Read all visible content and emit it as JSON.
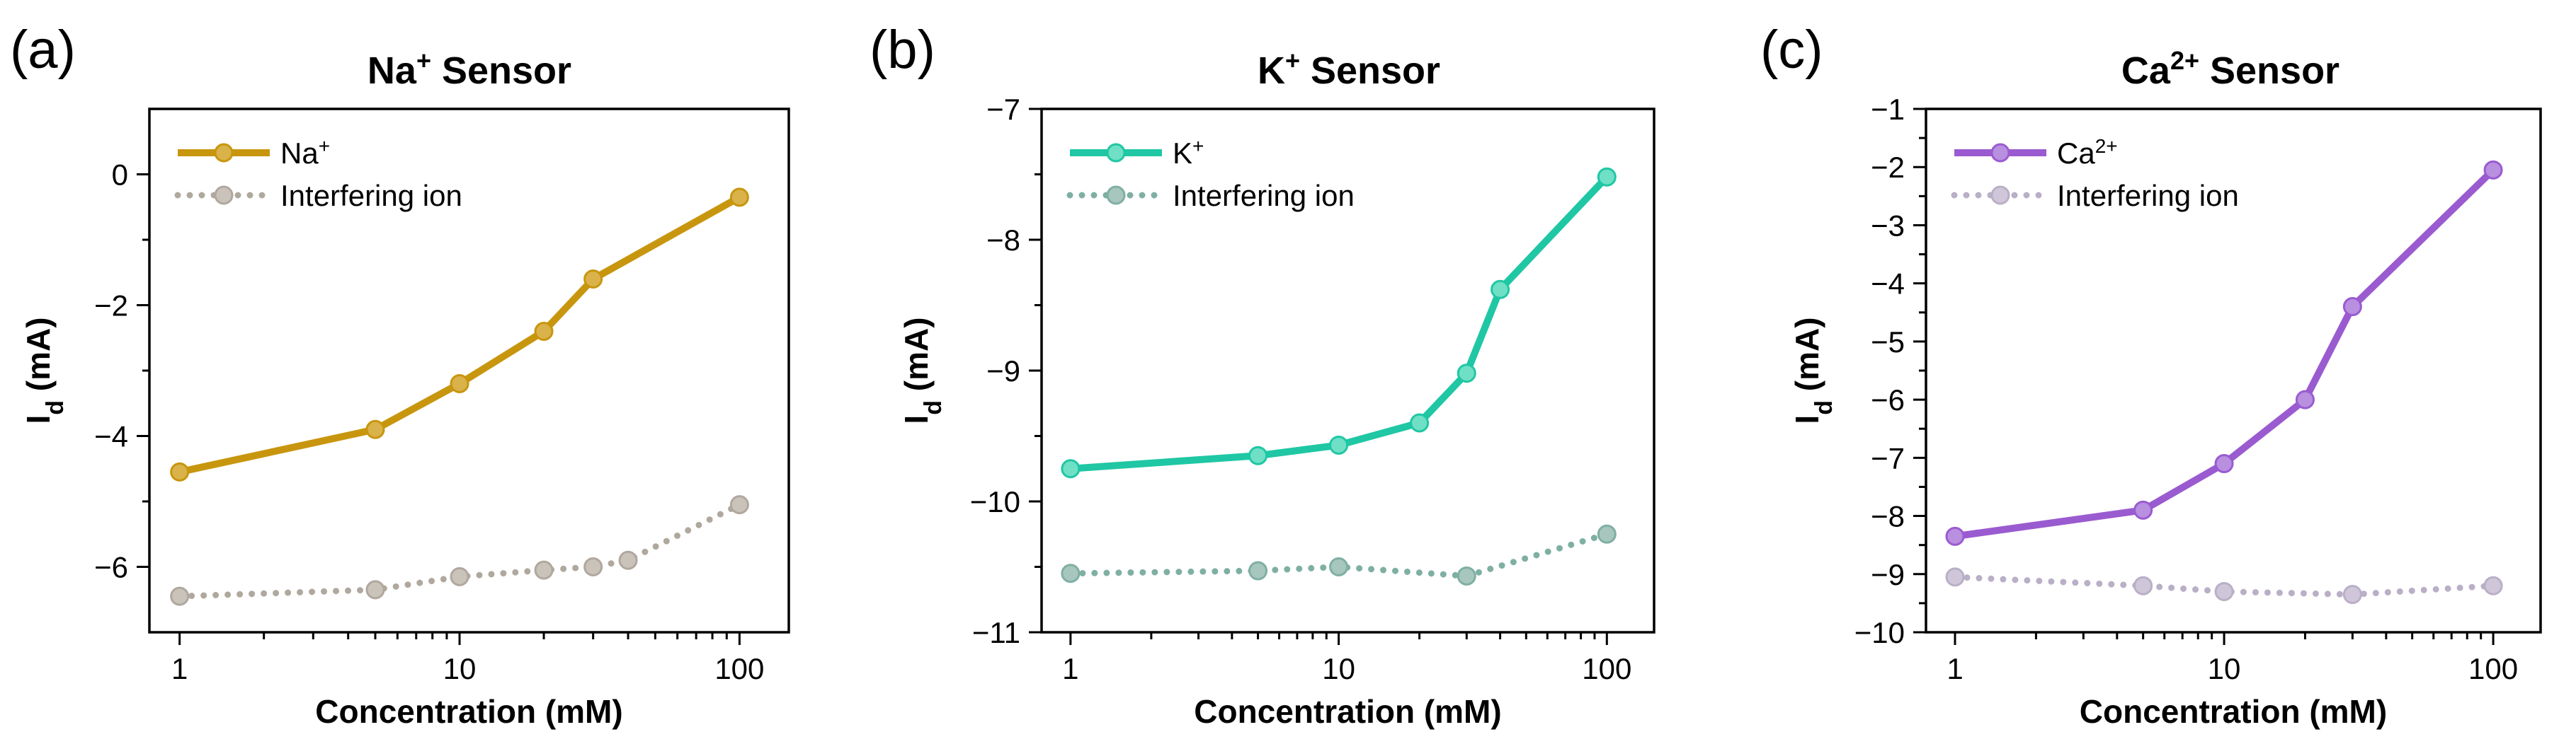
{
  "chart_data": [
    {
      "type": "line",
      "panel_label": "(a)",
      "title_main": "Na",
      "title_sup": "+",
      "title_rest": " Sensor",
      "xlabel": "Concentration (mM)",
      "ylabel_main": "I",
      "ylabel_sub": "d",
      "ylabel_rest": " (mA)",
      "xscale": "log",
      "xlim": [
        0.78,
        150
      ],
      "ylim": [
        -7,
        1
      ],
      "xticks": [
        1,
        10,
        100
      ],
      "xtick_labels": [
        "1",
        "10",
        "100"
      ],
      "yticks": [
        -6,
        -4,
        -2,
        0
      ],
      "ytick_labels": [
        "−6",
        "−4",
        "−2",
        "0"
      ],
      "legend_position": "top-left",
      "series": [
        {
          "name": "Na",
          "name_sup": "+",
          "style": "solid",
          "color": "#C8960E",
          "marker_color": "#D9B24A",
          "x": [
            1,
            5,
            10,
            20,
            30,
            100
          ],
          "y": [
            -4.55,
            -3.9,
            -3.2,
            -2.4,
            -1.6,
            -0.35
          ]
        },
        {
          "name": "Interfering ion",
          "name_sup": "",
          "style": "dotted",
          "color": "#B0A89E",
          "marker_color": "#C9C3BA",
          "x": [
            1,
            5,
            10,
            20,
            30,
            40,
            100
          ],
          "y": [
            -6.45,
            -6.35,
            -6.15,
            -6.05,
            -6.0,
            -5.9,
            -5.05
          ]
        }
      ]
    },
    {
      "type": "line",
      "panel_label": "(b)",
      "title_main": "K",
      "title_sup": "+",
      "title_rest": " Sensor",
      "xlabel": "Concentration (mM)",
      "ylabel_main": "I",
      "ylabel_sub": "d",
      "ylabel_rest": " (mA)",
      "xscale": "log",
      "xlim": [
        0.78,
        150
      ],
      "ylim": [
        -11,
        -7
      ],
      "xticks": [
        1,
        10,
        100
      ],
      "xtick_labels": [
        "1",
        "10",
        "100"
      ],
      "yticks": [
        -11,
        -10,
        -9,
        -8,
        -7
      ],
      "ytick_labels": [
        "−11",
        "−10",
        "−9",
        "−8",
        "−7"
      ],
      "legend_position": "top-left",
      "series": [
        {
          "name": "K",
          "name_sup": "+",
          "style": "solid",
          "color": "#1FC7A4",
          "marker_color": "#6FE0C5",
          "x": [
            1,
            5,
            10,
            20,
            30,
            40,
            100
          ],
          "y": [
            -9.75,
            -9.65,
            -9.57,
            -9.4,
            -9.02,
            -8.38,
            -7.52
          ]
        },
        {
          "name": "Interfering ion",
          "name_sup": "",
          "style": "dotted",
          "color": "#7FAFA3",
          "marker_color": "#A7C6BE",
          "x": [
            1,
            5,
            10,
            30,
            100
          ],
          "y": [
            -10.55,
            -10.53,
            -10.5,
            -10.57,
            -10.25
          ]
        }
      ]
    },
    {
      "type": "line",
      "panel_label": "(c)",
      "title_main": "Ca",
      "title_sup": "2+",
      "title_rest": " Sensor",
      "xlabel": "Concentration (mM)",
      "ylabel_main": "I",
      "ylabel_sub": "d",
      "ylabel_rest": " (mA)",
      "xscale": "log",
      "xlim": [
        0.78,
        150
      ],
      "ylim": [
        -10,
        -1
      ],
      "xticks": [
        1,
        10,
        100
      ],
      "xtick_labels": [
        "1",
        "10",
        "100"
      ],
      "yticks": [
        -10,
        -9,
        -8,
        -7,
        -6,
        -5,
        -4,
        -3,
        -2,
        -1
      ],
      "ytick_labels": [
        "−10",
        "−9",
        "−8",
        "−7",
        "−6",
        "−5",
        "−4",
        "−3",
        "−2",
        "−1"
      ],
      "legend_position": "top-left",
      "series": [
        {
          "name": "Ca",
          "name_sup": "2+",
          "style": "solid",
          "color": "#9A5BD0",
          "marker_color": "#B98FE0",
          "x": [
            1,
            5,
            10,
            20,
            30,
            100
          ],
          "y": [
            -8.35,
            -7.9,
            -7.1,
            -6.0,
            -4.4,
            -2.05
          ]
        },
        {
          "name": "Interfering ion",
          "name_sup": "",
          "style": "dotted",
          "color": "#B9AFC6",
          "marker_color": "#CFC7D9",
          "x": [
            1,
            5,
            10,
            30,
            100
          ],
          "y": [
            -9.05,
            -9.2,
            -9.3,
            -9.35,
            -9.2
          ]
        }
      ]
    }
  ]
}
